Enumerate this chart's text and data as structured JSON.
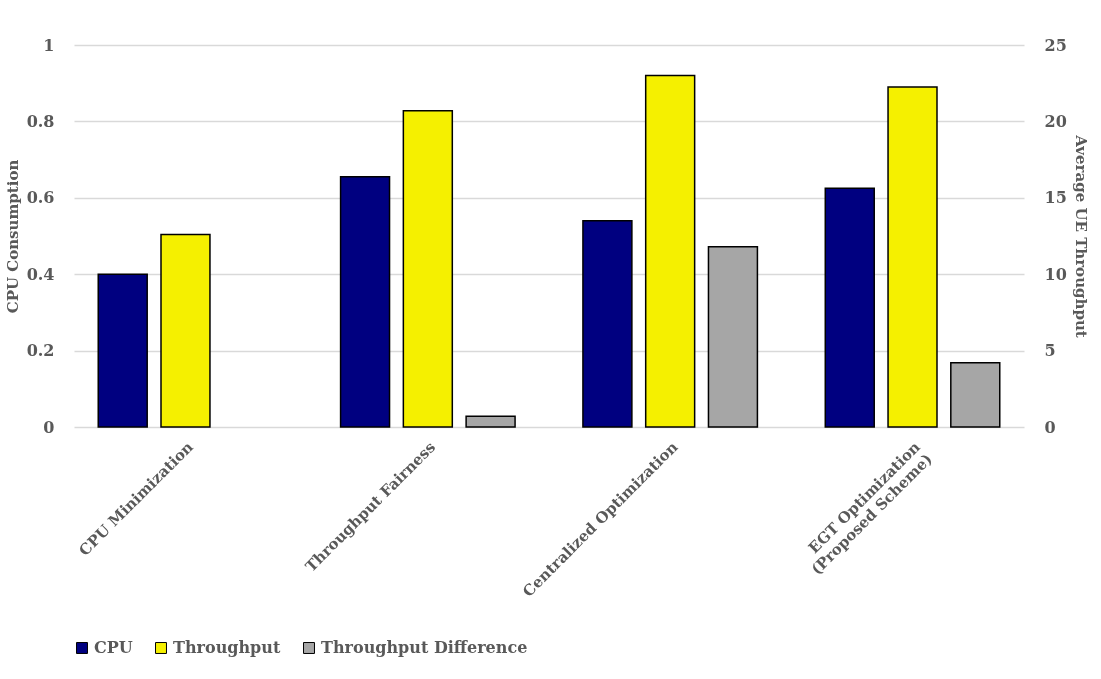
{
  "chart_data": {
    "type": "bar",
    "categories": [
      "CPU Minimization",
      "Throughput Fairness",
      "Centralized Optimization",
      "EGT Optimization\n(Proposed Scheme)"
    ],
    "series": [
      {
        "name": "CPU",
        "color": "#000080",
        "values": [
          0.4,
          0.655,
          0.54,
          0.625
        ]
      },
      {
        "name": "Throughput",
        "color": "#f5f000",
        "axis": "y2",
        "values": [
          12.6,
          20.7,
          23.0,
          22.25
        ]
      },
      {
        "name": "Throughput Difference",
        "color": "#a6a6a6",
        "axis": "y2",
        "values": [
          null,
          0.7,
          11.8,
          4.2
        ]
      }
    ],
    "ylabel": "CPU Consumption",
    "y2label": "Average UE Throughput",
    "ylim": [
      0,
      1
    ],
    "yticks": [
      0,
      0.2,
      0.4,
      0.6,
      0.8,
      1
    ],
    "y2lim": [
      0,
      25
    ],
    "y2ticks": [
      0,
      5,
      10,
      15,
      20,
      25
    ],
    "grid": "y",
    "legend": "bottom"
  }
}
